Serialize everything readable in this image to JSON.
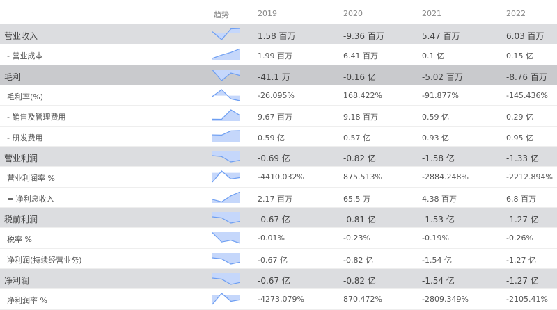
{
  "header": {
    "trend_label": "趋势",
    "years": [
      "2019",
      "2020",
      "2021",
      "2022"
    ]
  },
  "colors": {
    "spark_line": "#6d9ef2",
    "spark_fill": "#c5d7fb",
    "major_row": "#dcdde0",
    "highlight_row": "#c9cacd"
  },
  "rows": [
    {
      "label": "营业收入",
      "style": "major",
      "values": [
        "1.58 百万",
        "-9.36 百万",
        "5.47 百万",
        "6.03 百万"
      ]
    },
    {
      "label": "- 营业成本",
      "style": "sub",
      "values": [
        "1.99 百万",
        "6.41 百万",
        "0.1 亿",
        "0.15 亿"
      ]
    },
    {
      "label": "毛利",
      "style": "dark",
      "values": [
        "-41.1 万",
        "-0.16 亿",
        "-5.02 百万",
        "-8.76 百万"
      ]
    },
    {
      "label": "毛利率(%)",
      "style": "sub",
      "values": [
        "-26.095%",
        "168.422%",
        "-91.877%",
        "-145.436%"
      ]
    },
    {
      "label": "- 销售及管理费用",
      "style": "sub",
      "values": [
        "9.67 百万",
        "9.18 百万",
        "0.59 亿",
        "0.29 亿"
      ]
    },
    {
      "label": "- 研发费用",
      "style": "sub",
      "values": [
        "0.59 亿",
        "0.57 亿",
        "0.93 亿",
        "0.95 亿"
      ]
    },
    {
      "label": "营业利润",
      "style": "major",
      "values": [
        "-0.69 亿",
        "-0.82 亿",
        "-1.58 亿",
        "-1.33 亿"
      ]
    },
    {
      "label": "营业利润率 %",
      "style": "sub",
      "values": [
        "-4410.032%",
        "875.513%",
        "-2884.248%",
        "-2212.894%"
      ]
    },
    {
      "label": "= 净利息收入",
      "style": "sub",
      "values": [
        "2.17 百万",
        "65.5 万",
        "4.38 百万",
        "6.8 百万"
      ]
    },
    {
      "label": "税前利润",
      "style": "major",
      "values": [
        "-0.67 亿",
        "-0.81 亿",
        "-1.53 亿",
        "-1.27 亿"
      ]
    },
    {
      "label": "税率 %",
      "style": "sub",
      "values": [
        "-0.01%",
        "-0.23%",
        "-0.19%",
        "-0.26%"
      ]
    },
    {
      "label": "净利润(持续经营业务)",
      "style": "sub",
      "values": [
        "-0.67 亿",
        "-0.82 亿",
        "-1.54 亿",
        "-1.27 亿"
      ]
    },
    {
      "label": "净利润",
      "style": "major",
      "values": [
        "-0.67 亿",
        "-0.82 亿",
        "-1.54 亿",
        "-1.27 亿"
      ]
    },
    {
      "label": "净利润率 %",
      "style": "sub",
      "values": [
        "-4273.079%",
        "870.472%",
        "-2809.349%",
        "-2105.41%"
      ]
    }
  ]
}
